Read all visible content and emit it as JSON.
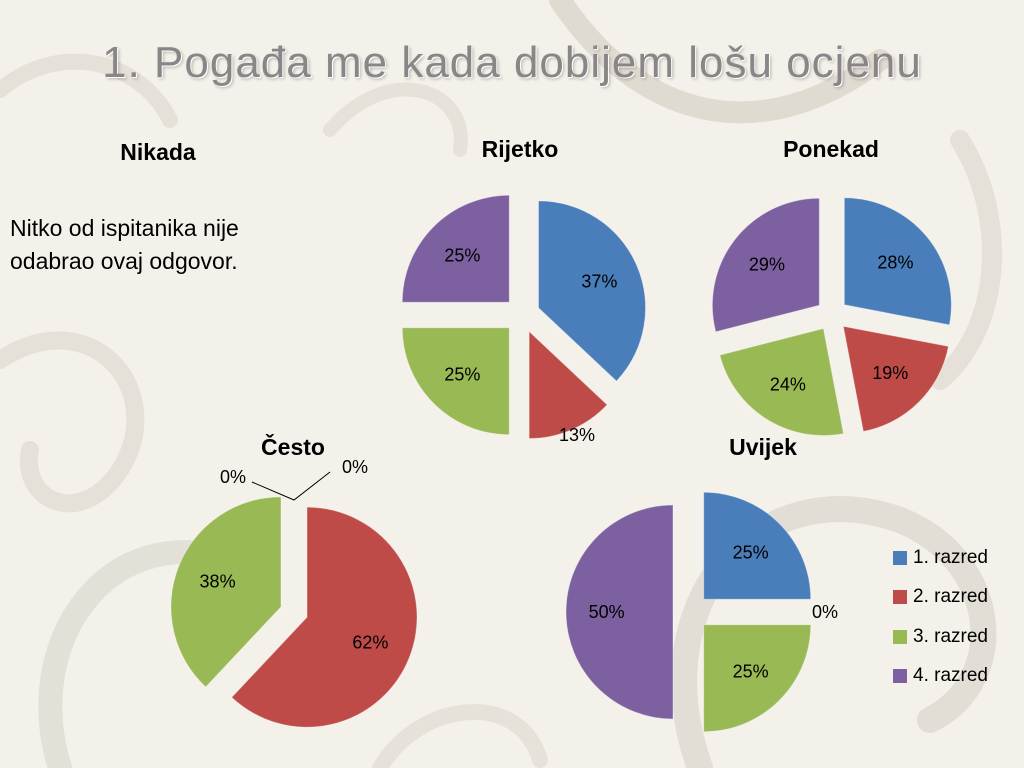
{
  "slide": {
    "title": "1. Pogađa me kada dobijem lošu ocjenu",
    "nikada_title": "Nikada",
    "nikada_note": "Nitko od ispitanika nije odabrao ovaj odgovor."
  },
  "colors": {
    "1. razred": "#4a7ebb",
    "2. razred": "#be4b48",
    "3. razred": "#98b954",
    "4. razred": "#7d60a0"
  },
  "legend": {
    "items": [
      {
        "label": "1. razred",
        "color": "#4a7ebb"
      },
      {
        "label": "2. razred",
        "color": "#be4b48"
      },
      {
        "label": "3. razred",
        "color": "#98b954"
      },
      {
        "label": "4. razred",
        "color": "#7d60a0"
      }
    ]
  },
  "chart_data": [
    {
      "type": "pie",
      "title": "Rijetko",
      "categories": [
        "1. razred",
        "2. razred",
        "3. razred",
        "4. razred"
      ],
      "values": [
        37,
        13,
        25,
        25
      ],
      "labels": [
        "37%",
        "13%",
        "25%",
        "25%"
      ],
      "exploded": true
    },
    {
      "type": "pie",
      "title": "Ponekad",
      "categories": [
        "1. razred",
        "2. razred",
        "3. razred",
        "4. razred"
      ],
      "values": [
        28,
        19,
        24,
        29
      ],
      "labels": [
        "28%",
        "19%",
        "24%",
        "29%"
      ],
      "exploded": true
    },
    {
      "type": "pie",
      "title": "Često",
      "categories": [
        "1. razred",
        "2. razred",
        "3. razred",
        "4. razred"
      ],
      "values": [
        0,
        62,
        38,
        0
      ],
      "labels": [
        "0%",
        "62%",
        "38%",
        "0%"
      ],
      "exploded": true
    },
    {
      "type": "pie",
      "title": "Uvijek",
      "categories": [
        "1. razred",
        "2. razred",
        "3. razred",
        "4. razred"
      ],
      "values": [
        25,
        0,
        25,
        50
      ],
      "labels": [
        "25%",
        "0%",
        "25%",
        "50%"
      ],
      "exploded": true,
      "legend": "right"
    }
  ]
}
